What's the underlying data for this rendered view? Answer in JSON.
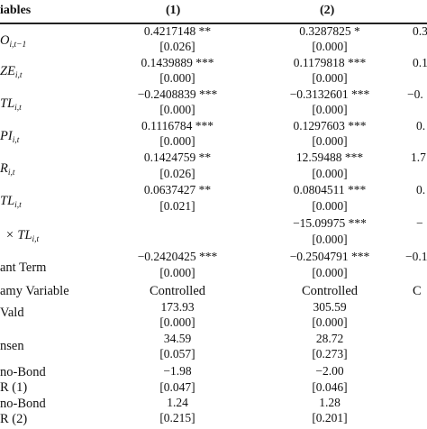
{
  "header": {
    "variables": "iables",
    "col1": "(1)",
    "col2": "(2)"
  },
  "rows": [
    {
      "label": "O",
      "sub": "i,t−1",
      "c1": [
        "0.4217148 **",
        "[0.026]"
      ],
      "c2": [
        "0.3287825 *",
        "[0.000]"
      ],
      "c3": [
        "0.3",
        ""
      ]
    },
    {
      "label": "ZE",
      "sub": "i,t",
      "c1": [
        "0.1439889 ***",
        "[0.000]"
      ],
      "c2": [
        "0.1179818 ***",
        "[0.000]"
      ],
      "c3": [
        "0.1",
        ""
      ]
    },
    {
      "label": "TL",
      "sub": "i,t",
      "c1": [
        "−0.2408839 ***",
        "[0.000]"
      ],
      "c2": [
        "−0.3132601 ***",
        "[0.000]"
      ],
      "c3": [
        "−0.",
        ""
      ]
    },
    {
      "label": "PI",
      "sub": "i,t",
      "c1": [
        "0.1116784 ***",
        "[0.000]"
      ],
      "c2": [
        "0.1297603 ***",
        "[0.000]"
      ],
      "c3": [
        "0.",
        ""
      ]
    },
    {
      "label": "R",
      "sub": "i,t",
      "c1": [
        "0.1424759 **",
        "[0.026]"
      ],
      "c2": [
        "12.59488 ***",
        "[0.000]"
      ],
      "c3": [
        "1.7",
        ""
      ]
    },
    {
      "label": "TL",
      "sub": "i,t",
      "c1": [
        "0.0637427 **",
        "[0.021]"
      ],
      "c2": [
        "0.0804511 ***",
        "[0.000]"
      ],
      "c3": [
        "0.",
        ""
      ]
    },
    {
      "label": "× TL",
      "sub": "i,t",
      "c1": [
        "",
        ""
      ],
      "c2": [
        "−15.09975 ***",
        "[0.000]"
      ],
      "c3": [
        "−",
        ""
      ]
    },
    {
      "label": "ant Term",
      "sub": "",
      "c1": [
        "−0.2420425 ***",
        "[0.000]"
      ],
      "c2": [
        "−0.2504791 ***",
        "[0.000]"
      ],
      "c3": [
        "−0.1",
        ""
      ]
    }
  ],
  "dummy": {
    "label": "amy Variable",
    "c1": "Controlled",
    "c2": "Controlled",
    "c3": "C"
  },
  "stats": [
    {
      "label": "Vald",
      "c1": [
        "173.93",
        "[0.000]"
      ],
      "c2": [
        "305.59",
        "[0.000]"
      ]
    },
    {
      "label": "nsen",
      "c1": [
        "34.59",
        "[0.057]"
      ],
      "c2": [
        "28.72",
        "[0.273]"
      ]
    }
  ],
  "ar": [
    {
      "label1": "no-Bond",
      "label2": "R (1)",
      "c1": [
        "−1.98",
        "[0.047]"
      ],
      "c2": [
        "−2.00",
        "[0.046]"
      ]
    },
    {
      "label1": "no-Bond",
      "label2": "R (2)",
      "c1": [
        "1.24",
        "[0.215]"
      ],
      "c2": [
        "1.28",
        "[0.201]"
      ]
    }
  ]
}
